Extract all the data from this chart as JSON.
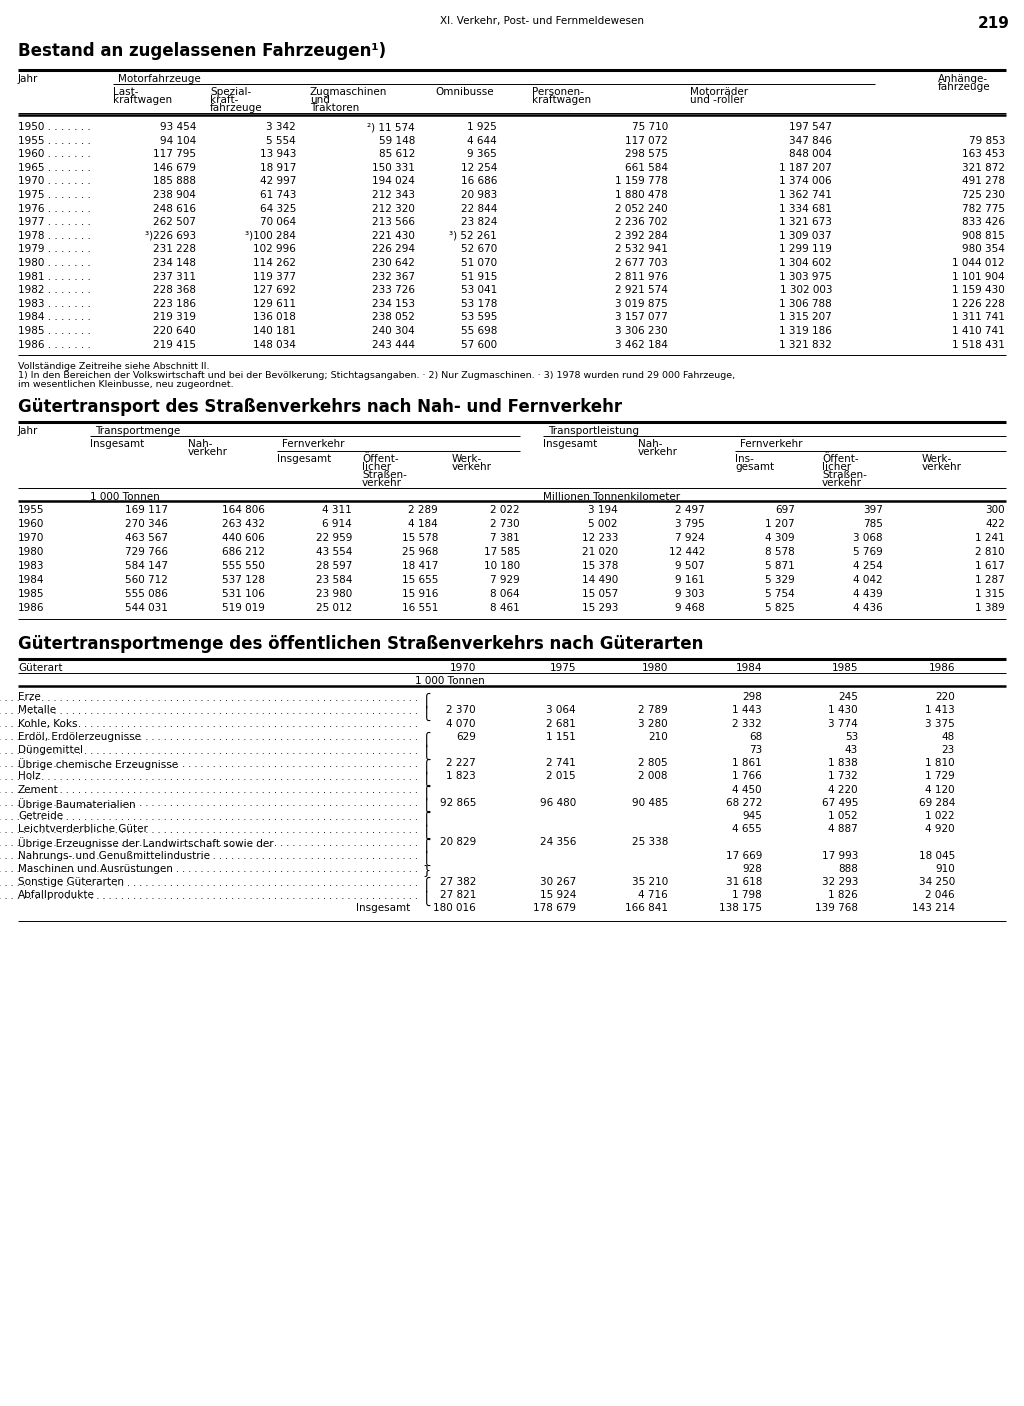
{
  "page_header": "XI. Verkehr, Post- und Fernmeldewesen",
  "page_number": "219",
  "s1_title": "Bestand an zugelassenen Fahrzeugen¹)",
  "s1_footnote1": "Vollständige Zeitreihe siehe Abschnitt II.",
  "s1_footnote2": "1) In den Bereichen der Volkswirtschaft und bei der Bevölkerung; Stichtagsangaben. · 2) Nur Zugmaschinen. · 3) 1978 wurden rund 29 000 Fahrzeuge,",
  "s1_footnote3": "im wesentlichen Kleinbusse, neu zugeordnet.",
  "s1_data": [
    [
      "1950",
      "93 454",
      "3 342",
      "²) 11 574",
      "1 925",
      "75 710",
      "197 547",
      ""
    ],
    [
      "1955",
      "94 104",
      "5 554",
      "59 148",
      "4 644",
      "117 072",
      "347 846",
      "79 853"
    ],
    [
      "1960",
      "117 795",
      "13 943",
      "85 612",
      "9 365",
      "298 575",
      "848 004",
      "163 453"
    ],
    [
      "1965",
      "146 679",
      "18 917",
      "150 331",
      "12 254",
      "661 584",
      "1 187 207",
      "321 872"
    ],
    [
      "1970",
      "185 888",
      "42 997",
      "194 024",
      "16 686",
      "1 159 778",
      "1 374 006",
      "491 278"
    ],
    [
      "1975",
      "238 904",
      "61 743",
      "212 343",
      "20 983",
      "1 880 478",
      "1 362 741",
      "725 230"
    ],
    [
      "1976",
      "248 616",
      "64 325",
      "212 320",
      "22 844",
      "2 052 240",
      "1 334 681",
      "782 775"
    ],
    [
      "1977",
      "262 507",
      "70 064",
      "213 566",
      "23 824",
      "2 236 702",
      "1 321 673",
      "833 426"
    ],
    [
      "1978",
      "³)226 693",
      "³)100 284",
      "221 430",
      "³) 52 261",
      "2 392 284",
      "1 309 037",
      "908 815"
    ],
    [
      "1979",
      "231 228",
      "102 996",
      "226 294",
      "52 670",
      "2 532 941",
      "1 299 119",
      "980 354"
    ],
    [
      "1980",
      "234 148",
      "114 262",
      "230 642",
      "51 070",
      "2 677 703",
      "1 304 602",
      "1 044 012"
    ],
    [
      "1981",
      "237 311",
      "119 377",
      "232 367",
      "51 915",
      "2 811 976",
      "1 303 975",
      "1 101 904"
    ],
    [
      "1982",
      "228 368",
      "127 692",
      "233 726",
      "53 041",
      "2 921 574",
      "1 302 003",
      "1 159 430"
    ],
    [
      "1983",
      "223 186",
      "129 611",
      "234 153",
      "53 178",
      "3 019 875",
      "1 306 788",
      "1 226 228"
    ],
    [
      "1984",
      "219 319",
      "136 018",
      "238 052",
      "53 595",
      "3 157 077",
      "1 315 207",
      "1 311 741"
    ],
    [
      "1985",
      "220 640",
      "140 181",
      "240 304",
      "55 698",
      "3 306 230",
      "1 319 186",
      "1 410 741"
    ],
    [
      "1986",
      "219 415",
      "148 034",
      "243 444",
      "57 600",
      "3 462 184",
      "1 321 832",
      "1 518 431"
    ]
  ],
  "s2_title": "Gütertransport des Straßenverkehrs nach Nah- und Fernverkehr",
  "s2_data": [
    [
      "1955",
      "169 117",
      "164 806",
      "4 311",
      "2 289",
      "2 022",
      "3 194",
      "2 497",
      "697",
      "397",
      "300"
    ],
    [
      "1960",
      "270 346",
      "263 432",
      "6 914",
      "4 184",
      "2 730",
      "5 002",
      "3 795",
      "1 207",
      "785",
      "422"
    ],
    [
      "1970",
      "463 567",
      "440 606",
      "22 959",
      "15 578",
      "7 381",
      "12 233",
      "7 924",
      "4 309",
      "3 068",
      "1 241"
    ],
    [
      "1980",
      "729 766",
      "686 212",
      "43 554",
      "25 968",
      "17 585",
      "21 020",
      "12 442",
      "8 578",
      "5 769",
      "2 810"
    ],
    [
      "1983",
      "584 147",
      "555 550",
      "28 597",
      "18 417",
      "10 180",
      "15 378",
      "9 507",
      "5 871",
      "4 254",
      "1 617"
    ],
    [
      "1984",
      "560 712",
      "537 128",
      "23 584",
      "15 655",
      "7 929",
      "14 490",
      "9 161",
      "5 329",
      "4 042",
      "1 287"
    ],
    [
      "1985",
      "555 086",
      "531 106",
      "23 980",
      "15 916",
      "8 064",
      "15 057",
      "9 303",
      "5 754",
      "4 439",
      "1 315"
    ],
    [
      "1986",
      "544 031",
      "519 019",
      "25 012",
      "16 551",
      "8 461",
      "15 293",
      "9 468",
      "5 825",
      "4 436",
      "1 389"
    ]
  ],
  "s3_title": "Gütertransportmenge des öffentlichen Straßenverkehrs nach Güterarten",
  "s3_years": [
    "1970",
    "1975",
    "1980",
    "1984",
    "1985",
    "1986"
  ],
  "s3_rows": [
    {
      "label": "Erze",
      "v70": "",
      "v75": "",
      "v80": "",
      "v84": "298",
      "v85": "245",
      "v86": "220",
      "bracket_start": true
    },
    {
      "label": "Metalle",
      "v70": "2 370",
      "v75": "3 064",
      "v80": "2 789",
      "v84": "1 443",
      "v85": "1 430",
      "v86": "1 413",
      "bracket_end": true,
      "extra_84": "2 332",
      "extra_85": "",
      "extra_86": ""
    },
    {
      "label": "Kohle, Koks",
      "v70": "4 070",
      "v75": "2 681",
      "v80": "3 280",
      "v84": "2 332",
      "v85": "3 774",
      "v86": "3 375"
    },
    {
      "label": "Erdöl, Erdölerzeugnisse",
      "v70": "629",
      "v75": "1 151",
      "v80": "210",
      "v84": "68",
      "v85": "53",
      "v86": "48",
      "bracket_start": true
    },
    {
      "label": "Düngemittel",
      "v70": "",
      "v75": "",
      "v80": "",
      "v84": "73",
      "v85": "43",
      "v86": "23",
      "bracket_end": true
    },
    {
      "Übrige chemische Erzeugnisse": true,
      "label": "Übrige chemische Erzeugnisse",
      "v70": "2 227",
      "v75": "2 741",
      "v80": "2 805",
      "v84": "1 861",
      "v85": "1 838",
      "v86": "1 810",
      "bracket_start": true
    },
    {
      "label": "Holz",
      "v70": "1 823",
      "v75": "2 015",
      "v80": "2 008",
      "v84": "1 766",
      "v85": "1 732",
      "v86": "1 729",
      "bracket_end": true
    },
    {
      "label": "Zement",
      "v70": "",
      "v75": "",
      "v80": "",
      "v84": "4 450",
      "v85": "4 220",
      "v86": "4 120",
      "bracket_start": true
    },
    {
      "label": "Übrige Baumaterialien",
      "v70": "92 865",
      "v75": "96 480",
      "v80": "90 485",
      "v84": "68 272",
      "v85": "67 495",
      "v86": "69 284",
      "bracket_end": true
    },
    {
      "label": "Getreide",
      "v70": "",
      "v75": "",
      "v80": "",
      "v84": "945",
      "v85": "1 052",
      "v86": "1 022",
      "bracket_start": true
    },
    {
      "label": "Leichtverderbliche Güter",
      "v70": "",
      "v75": "",
      "v80": "",
      "v84": "4 655",
      "v85": "4 887",
      "v86": "4 920",
      "bracket_end": true
    },
    {
      "label": "Übrige Erzeugnisse der Landwirtschaft sowie der",
      "v70": "20 829",
      "v75": "24 356",
      "v80": "25 338",
      "v84": "",
      "v85": "",
      "v86": "",
      "bracket_start": true
    },
    {
      "label": "Nahrungs- und Genußmittelindustrie",
      "v70": "",
      "v75": "",
      "v80": "",
      "v84": "17 669",
      "v85": "17 993",
      "v86": "18 045",
      "bracket_end": true
    },
    {
      "label": "Maschinen und Ausrüstungen",
      "v70": "",
      "v75": "",
      "v80": "",
      "v84": "928",
      "v85": "888",
      "v86": "910",
      "bracket_start": true,
      "bracket_end": true
    },
    {
      "label": "Sonstige Güterarten",
      "v70": "27 382",
      "v75": "30 267",
      "v80": "35 210",
      "v84": "31 618",
      "v85": "32 293",
      "v86": "34 250",
      "bracket_start": true
    },
    {
      "label": "Abfallprodukte",
      "v70": "27 821",
      "v75": "15 924",
      "v80": "4 716",
      "v84": "1 798",
      "v85": "1 826",
      "v86": "2 046",
      "bracket_end": true
    },
    {
      "label": "Insgesamt",
      "v70": "180 016",
      "v75": "178 679",
      "v80": "166 841",
      "v84": "138 175",
      "v85": "139 768",
      "v86": "143 214",
      "total": true
    }
  ]
}
